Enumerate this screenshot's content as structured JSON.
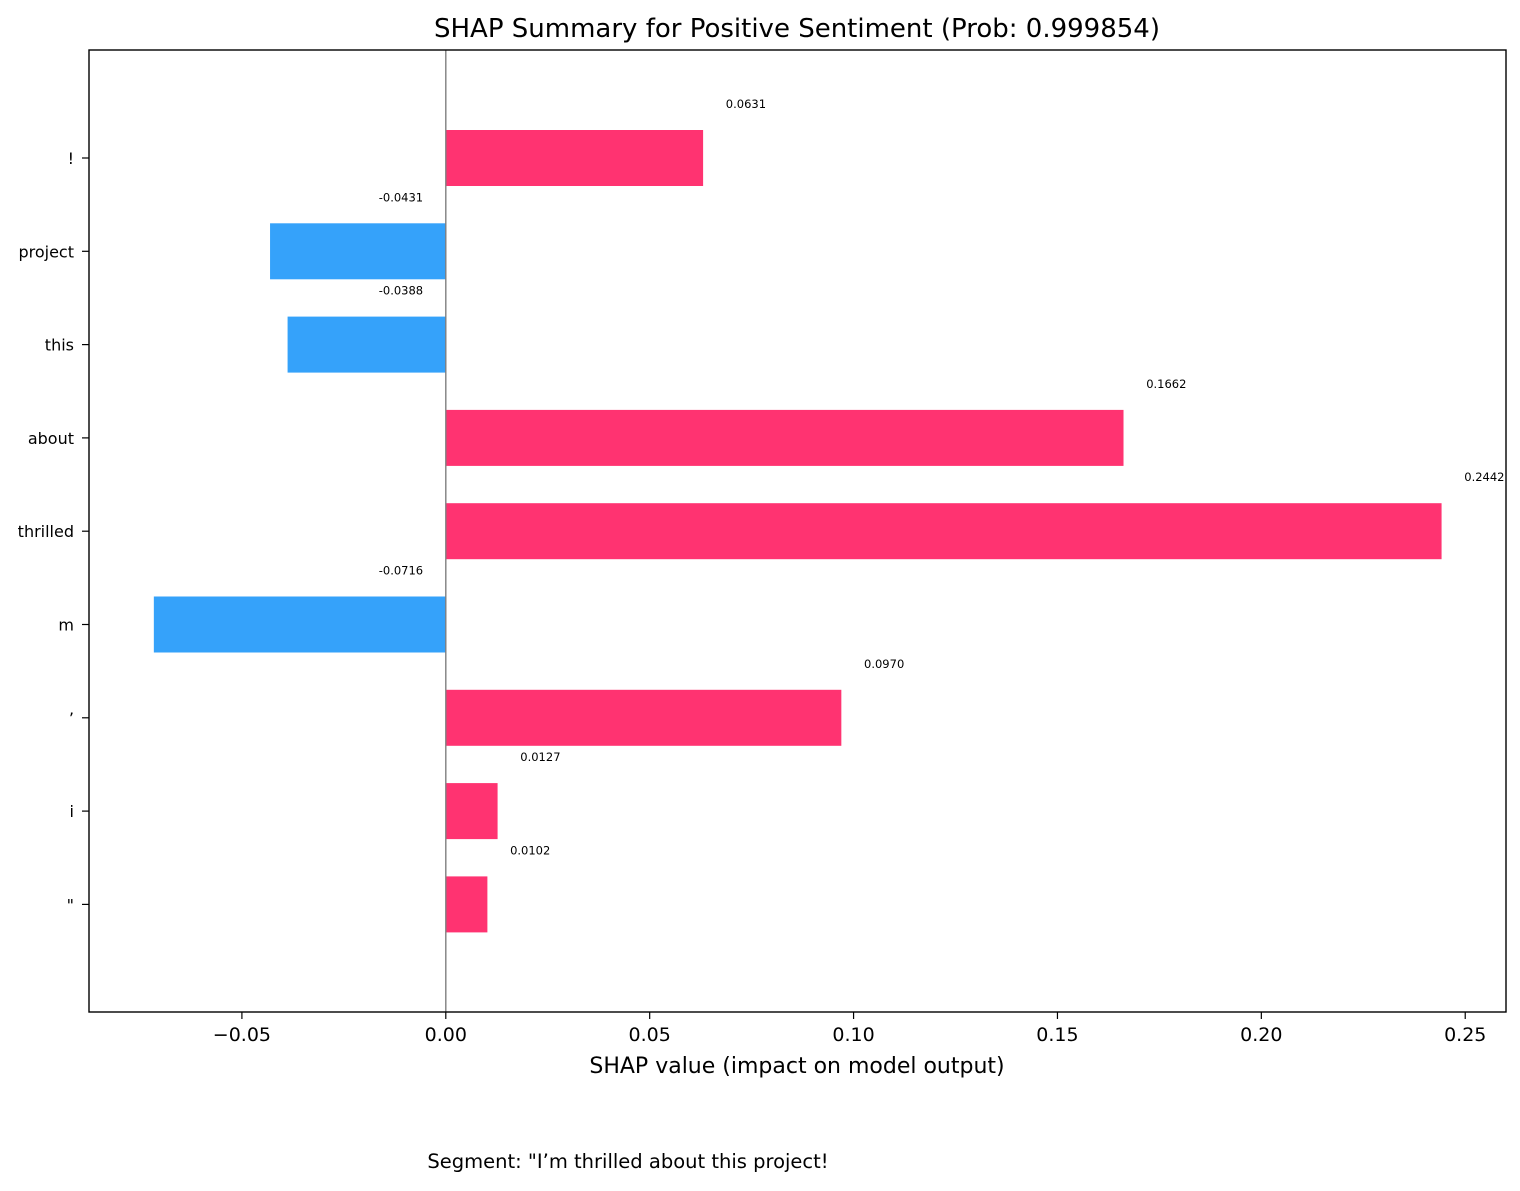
{
  "chart_data": {
    "type": "bar",
    "orientation": "horizontal",
    "title": "SHAP Summary for Positive Sentiment (Prob: 0.999854)",
    "xlabel": "SHAP value (impact on model output)",
    "ylabel": "",
    "xlim": [
      -0.0875,
      0.26
    ],
    "x_ticks": [
      -0.05,
      0.0,
      0.05,
      0.1,
      0.15,
      0.2,
      0.25
    ],
    "x_tick_labels": [
      "−0.05",
      "0.00",
      "0.05",
      "0.10",
      "0.15",
      "0.20",
      "0.25"
    ],
    "categories": [
      "!",
      "project",
      "this",
      "about",
      "thrilled",
      "m",
      "’",
      "i",
      "\""
    ],
    "values": [
      0.0631,
      -0.0431,
      -0.0388,
      0.1662,
      0.2442,
      -0.0716,
      0.097,
      0.0127,
      0.0102
    ],
    "data_labels": [
      "0.0631",
      "-0.0431",
      "-0.0388",
      "0.1662",
      "0.2442",
      "-0.0716",
      "0.0970",
      "0.0127",
      "0.0102"
    ],
    "positive_color": "#ff3371",
    "negative_color": "#35a2fa",
    "zero_line": true,
    "grid": false,
    "legend": "none",
    "caption": "Segment: \"I’m thrilled about this project!"
  }
}
